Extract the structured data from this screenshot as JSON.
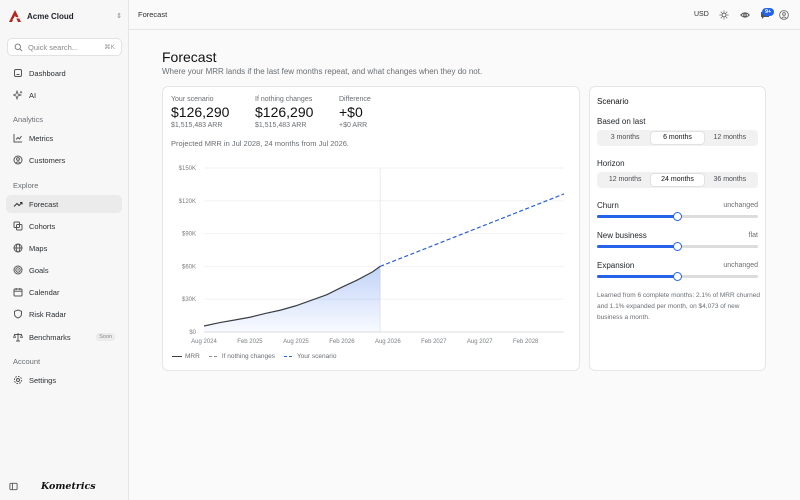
{
  "sidebar": {
    "org_name": "Acme Cloud",
    "search_placeholder": "Quick search...",
    "search_shortcut": "⌘K",
    "items": [
      {
        "label": "Dashboard",
        "icon": "home-icon"
      },
      {
        "label": "AI",
        "icon": "sparkles-icon"
      }
    ],
    "analytics_label": "Analytics",
    "analytics_items": [
      {
        "label": "Metrics",
        "icon": "chart-line-icon"
      },
      {
        "label": "Customers",
        "icon": "users-icon"
      }
    ],
    "explore_label": "Explore",
    "explore_items": [
      {
        "label": "Forecast",
        "icon": "trend-icon",
        "active": true
      },
      {
        "label": "Cohorts",
        "icon": "layers-icon"
      },
      {
        "label": "Maps",
        "icon": "globe-icon"
      },
      {
        "label": "Goals",
        "icon": "target-icon"
      },
      {
        "label": "Calendar",
        "icon": "calendar-icon"
      },
      {
        "label": "Risk Radar",
        "icon": "shield-icon"
      },
      {
        "label": "Benchmarks",
        "icon": "scale-icon",
        "badge": "Soon"
      }
    ],
    "account_label": "Account",
    "account_items": [
      {
        "label": "Settings",
        "icon": "gear-icon"
      }
    ],
    "brand": "Kometrics"
  },
  "topbar": {
    "breadcrumb": "Forecast",
    "currency": "USD",
    "notification_count": "9+"
  },
  "page": {
    "title": "Forecast",
    "subtitle": "Where your MRR lands if the last few months repeat, and what changes when they do not."
  },
  "stats": [
    {
      "label": "Your scenario",
      "value": "$126,290",
      "sub": "$1,515,483 ARR"
    },
    {
      "label": "If nothing changes",
      "value": "$126,290",
      "sub": "$1,515,483 ARR"
    },
    {
      "label": "Difference",
      "value": "+$0",
      "sub": "+$0 ARR"
    }
  ],
  "projection_text": "Projected MRR in Jul 2028, 24 months from Jul 2026.",
  "chart_data": {
    "type": "line",
    "x_labels": [
      "Aug 2024",
      "Feb 2025",
      "Aug 2025",
      "Feb 2026",
      "Aug 2026",
      "Feb 2027",
      "Aug 2027",
      "Feb 2028"
    ],
    "y_ticks": [
      "$0",
      "$30K",
      "$60K",
      "$90K",
      "$120K",
      "$150K"
    ],
    "ylim": [
      0,
      150000
    ],
    "x_range_months": [
      0,
      47
    ],
    "today_month": 23,
    "series": [
      {
        "name": "MRR",
        "color": "#3b3f44",
        "style": "solid",
        "x": [
          0,
          2,
          4,
          6,
          8,
          10,
          12,
          14,
          16,
          18,
          20,
          22,
          23
        ],
        "values": [
          5500,
          8500,
          11000,
          13500,
          17000,
          20000,
          24000,
          29000,
          34000,
          41000,
          47500,
          55000,
          60000
        ]
      },
      {
        "name": "If nothing changes",
        "color": "#8a8e93",
        "style": "dashed",
        "x": [
          23,
          47
        ],
        "values": [
          60000,
          126290
        ]
      },
      {
        "name": "Your scenario",
        "color": "#2563eb",
        "style": "dashed",
        "x": [
          23,
          47
        ],
        "values": [
          60000,
          126290
        ]
      }
    ],
    "legend": [
      "MRR",
      "If nothing changes",
      "Your scenario"
    ],
    "legend_position": "bottom-left",
    "grid": true
  },
  "scenario": {
    "title": "Scenario",
    "based_on_label": "Based on last",
    "based_on_options": [
      "3 months",
      "6 months",
      "12 months"
    ],
    "based_on_selected": 1,
    "horizon_label": "Horizon",
    "horizon_options": [
      "12 months",
      "24 months",
      "36 months"
    ],
    "horizon_selected": 1,
    "sliders": [
      {
        "label": "Churn",
        "value_text": "unchanged",
        "position": 0.5
      },
      {
        "label": "New business",
        "value_text": "flat",
        "position": 0.5
      },
      {
        "label": "Expansion",
        "value_text": "unchanged",
        "position": 0.5
      }
    ],
    "note": "Learned from 6 complete months: 2.1% of MRR churned and 1.1% expanded per month, on $4,073 of new business a month."
  },
  "colors": {
    "accent": "#2563eb",
    "logo": "#b3261e"
  }
}
